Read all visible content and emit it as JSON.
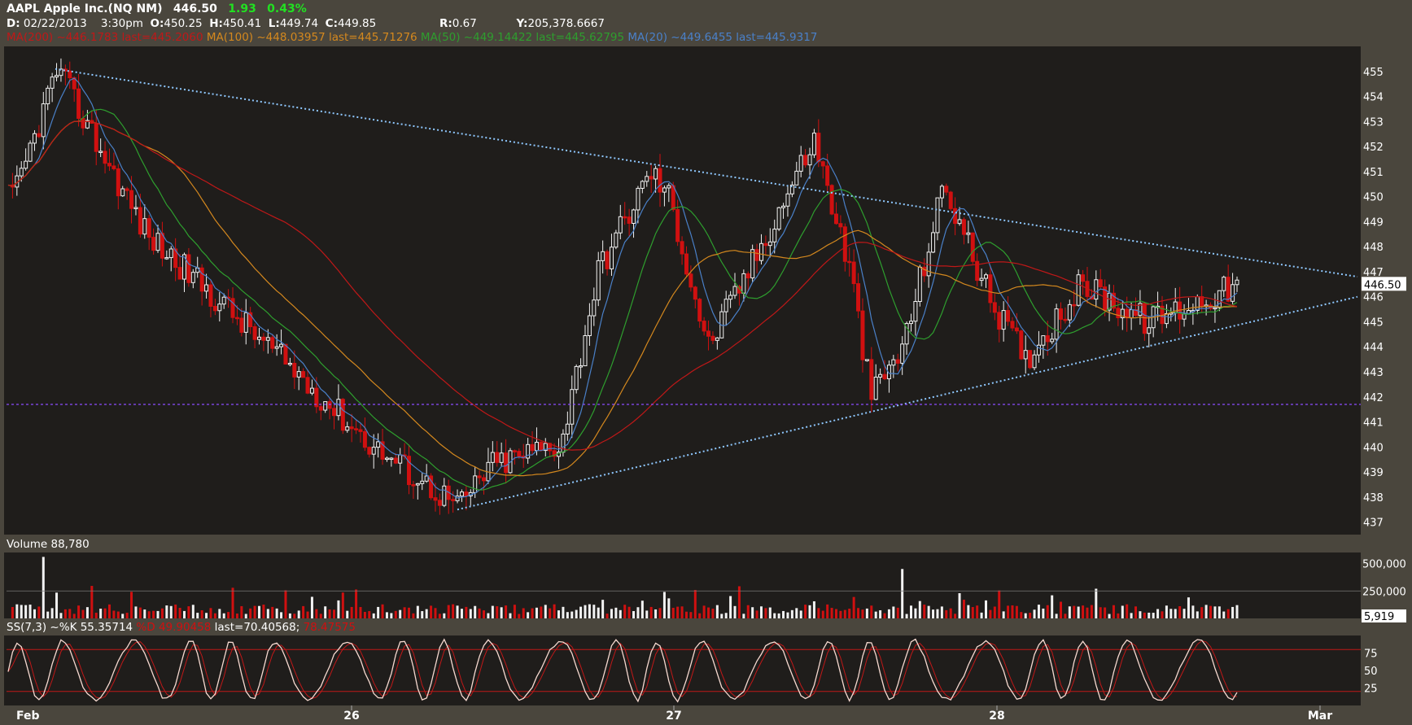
{
  "header": {
    "symbol": "AAPL Apple Inc.(NQ NM)",
    "last": "446.50",
    "change": "1.93",
    "change_pct": "0.43%",
    "date_label": "D:",
    "date": "02/22/2013",
    "time": "3:30pm",
    "open_label": "O:",
    "open": "450.25",
    "high_label": "H:",
    "high": "450.41",
    "low_label": "L:",
    "low": "449.74",
    "close_label": "C:",
    "close": "449.85",
    "r_label": "R:",
    "r": "0.67",
    "y_label": "Y:",
    "y": "205,378.6667"
  },
  "ma_legend": [
    {
      "text": "MA(200)  ~446.1783 last=445.2060",
      "color": "#c01818"
    },
    {
      "text": "MA(100)  ~448.03957 last=445.71276",
      "color": "#d4881e"
    },
    {
      "text": "MA(50)  ~449.14422 last=445.62795",
      "color": "#2e9e2e"
    },
    {
      "text": "MA(20)  ~449.6455 last=445.9317",
      "color": "#4a80c8"
    }
  ],
  "colors": {
    "background": "#4a463d",
    "plot": "#1f1d1b",
    "up": "#f2f2f2",
    "down": "#d01010",
    "ma20": "#4a80c8",
    "ma50": "#2e9e2e",
    "ma100": "#d4881e",
    "ma200": "#c01818",
    "trendline": "#8fc8ff",
    "support": "#8a4cff",
    "stoch": "#f6d9d0",
    "stoch_signal": "#c01818"
  },
  "price_label": "446.50",
  "volume_title": "Volume 88,780",
  "volume_last_label": "5,919",
  "stoch_title_parts": [
    {
      "text": "SS(7,3)  ~%K 55.35714",
      "color": "#ffffff"
    },
    {
      "text": "  %D 49.90458 ",
      "color": "#d01010"
    },
    {
      "text": "last=70.40568;",
      "color": "#ffffff"
    },
    {
      "text": " 78.47575",
      "color": "#d01010"
    }
  ],
  "chart_data": [
    {
      "type": "candlestick",
      "title": "",
      "x": [
        "Feb",
        "26",
        "27",
        "28",
        "Mar"
      ],
      "yticks": [
        437,
        438,
        439,
        440,
        441,
        442,
        443,
        444,
        445,
        446,
        447,
        448,
        449,
        450,
        451,
        452,
        453,
        454,
        455
      ],
      "ylim": [
        436.5,
        456
      ],
      "key_points": [
        {
          "x": "Feb",
          "y": 450.0
        },
        {
          "x": "Feb",
          "y": 455.1
        },
        {
          "x": "Feb",
          "y": 448.5
        },
        {
          "x": "Feb",
          "y": 444.0
        },
        {
          "x": "26",
          "y": 440.0
        },
        {
          "x": "26",
          "y": 437.6
        },
        {
          "x": "26",
          "y": 439.2
        },
        {
          "x": "26",
          "y": 440.2
        },
        {
          "x": "26",
          "y": 447.0
        },
        {
          "x": "26",
          "y": 449.5
        },
        {
          "x": "27",
          "y": 451.0
        },
        {
          "x": "27",
          "y": 450.0
        },
        {
          "x": "27",
          "y": 444.0
        },
        {
          "x": "27",
          "y": 448.0
        },
        {
          "x": "27",
          "y": 452.3
        },
        {
          "x": "27",
          "y": 447.0
        },
        {
          "x": "27",
          "y": 442.0
        },
        {
          "x": "27",
          "y": 444.0
        },
        {
          "x": "28",
          "y": 450.5
        },
        {
          "x": "28",
          "y": 446.0
        },
        {
          "x": "28",
          "y": 443.5
        },
        {
          "x": "28",
          "y": 446.5
        },
        {
          "x": "28",
          "y": 445.0
        },
        {
          "x": "28",
          "y": 446.5
        }
      ],
      "trendlines": {
        "resistance": [
          {
            "x": "Feb",
            "y": 455.1
          },
          {
            "x": "Mar",
            "y": 446.8
          }
        ],
        "support": [
          {
            "x": "26",
            "y": 437.5
          },
          {
            "x": "Mar",
            "y": 446.0
          }
        ],
        "horizontal_support": 441.7
      },
      "last_price": 446.5,
      "grid": false
    },
    {
      "type": "bar",
      "title": "Volume",
      "yticks": [
        "250,000",
        "500,000"
      ],
      "ylim": [
        0,
        600000
      ],
      "last_value": 5919
    },
    {
      "type": "line",
      "title": "SS(7,3)",
      "yticks": [
        25,
        50,
        75
      ],
      "ylim": [
        0,
        100
      ],
      "reference_lines": [
        20,
        80
      ]
    }
  ]
}
